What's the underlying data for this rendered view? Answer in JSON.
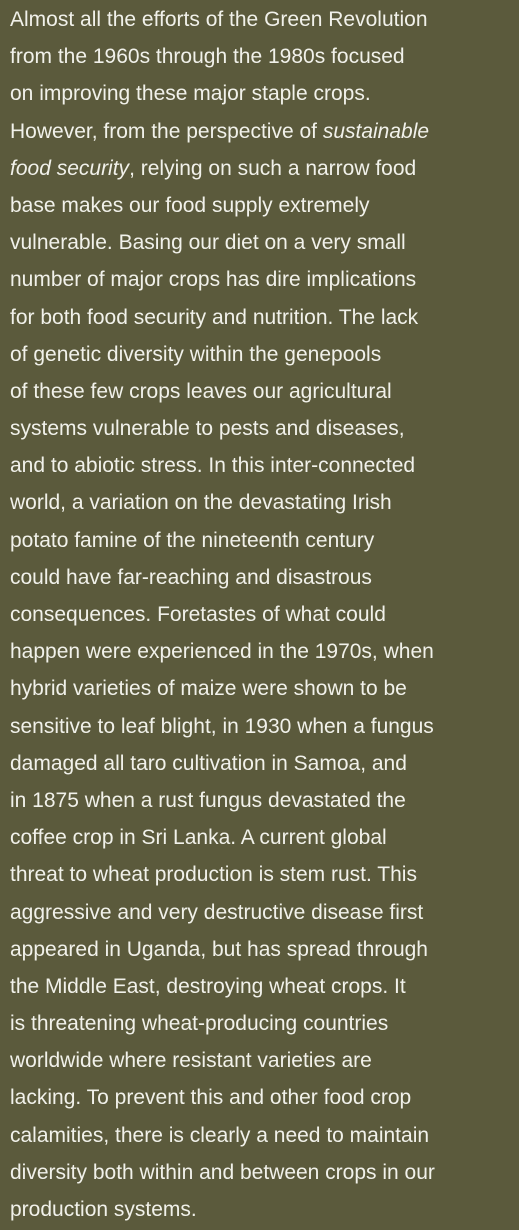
{
  "paragraph": {
    "lines": [
      "Almost all the efforts of the Green Revolution",
      "from the 1960s through the 1980s focused",
      "on improving these major staple crops.",
      {
        "text": "However, from the perspective of ",
        "emphasis": "sustainable"
      },
      {
        "emphasis": "food security",
        "text": ", relying on such a narrow food"
      },
      "base makes our food supply extremely",
      "vulnerable. Basing our diet on a very small",
      "number of major crops has dire implications",
      "for both food security and nutrition. The lack",
      "of genetic diversity within the genepools",
      "of these few crops leaves our agricultural",
      "systems vulnerable to pests and diseases,",
      "and to abiotic stress. In this inter-connected",
      "world, a variation on the devastating Irish",
      "potato famine of the nineteenth century",
      "could have far-reaching and disastrous",
      "consequences. Foretastes of what could",
      "happen were experienced in the 1970s, when",
      "hybrid varieties of maize were shown to be",
      "sensitive to leaf blight, in 1930 when a fungus",
      "damaged all taro cultivation in Samoa, and",
      "in 1875 when a rust fungus devastated the",
      "coffee crop in Sri Lanka. A current global",
      "threat to wheat production is stem rust. This",
      "aggressive and very destructive disease first",
      "appeared in Uganda, but has spread through",
      "the Middle East, destroying wheat crops. It",
      "is threatening wheat-producing countries",
      "worldwide where resistant varieties are",
      "lacking. To prevent this and other food crop",
      "calamities, there is clearly a need to maintain",
      "diversity both within and between crops in our",
      "production systems."
    ]
  }
}
